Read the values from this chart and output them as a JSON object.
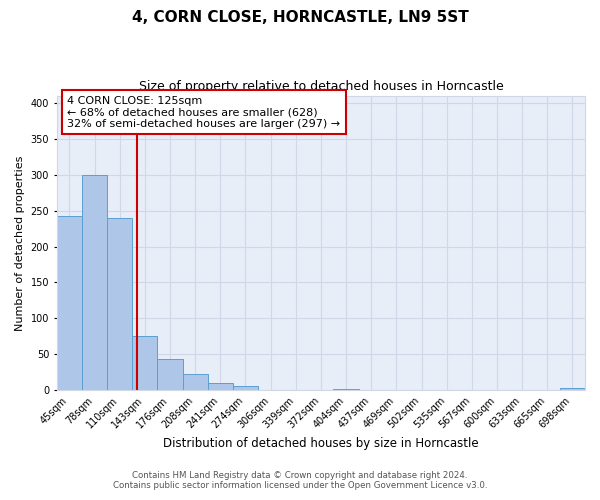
{
  "title": "4, CORN CLOSE, HORNCASTLE, LN9 5ST",
  "subtitle": "Size of property relative to detached houses in Horncastle",
  "xlabel": "Distribution of detached houses by size in Horncastle",
  "ylabel": "Number of detached properties",
  "bar_labels": [
    "45sqm",
    "78sqm",
    "110sqm",
    "143sqm",
    "176sqm",
    "208sqm",
    "241sqm",
    "274sqm",
    "306sqm",
    "339sqm",
    "372sqm",
    "404sqm",
    "437sqm",
    "469sqm",
    "502sqm",
    "535sqm",
    "567sqm",
    "600sqm",
    "633sqm",
    "665sqm",
    "698sqm"
  ],
  "bar_values": [
    242,
    299,
    240,
    76,
    44,
    22,
    10,
    6,
    0,
    0,
    0,
    2,
    0,
    0,
    0,
    0,
    0,
    0,
    0,
    0,
    3
  ],
  "bar_color": "#aec6e8",
  "bar_edge_color": "#5a9fd4",
  "vline_x": 2.67,
  "vline_color": "#cc0000",
  "annotation_line1": "4 CORN CLOSE: 125sqm",
  "annotation_line2": "← 68% of detached houses are smaller (628)",
  "annotation_line3": "32% of semi-detached houses are larger (297) →",
  "annotation_box_color": "#ffffff",
  "annotation_box_edge_color": "#cc0000",
  "ylim": [
    0,
    410
  ],
  "yticks": [
    0,
    50,
    100,
    150,
    200,
    250,
    300,
    350,
    400
  ],
  "plot_bg_color": "#e8eef8",
  "bg_color": "#ffffff",
  "grid_color": "#d0d8e8",
  "footer_line1": "Contains HM Land Registry data © Crown copyright and database right 2024.",
  "footer_line2": "Contains public sector information licensed under the Open Government Licence v3.0."
}
